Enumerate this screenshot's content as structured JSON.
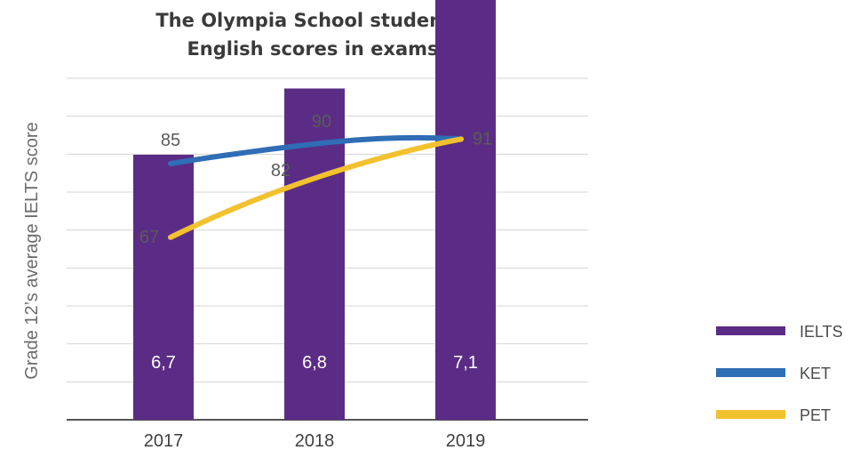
{
  "chart_data": {
    "type": "bar+line",
    "title_lines": [
      "The Olympia School students’",
      "English scores in exams"
    ],
    "ylabel": "Grade 12’s average IELTS score",
    "categories": [
      "2017",
      "2018",
      "2019"
    ],
    "series": [
      {
        "name": "IELTS",
        "kind": "bar",
        "color": "#5b2c86",
        "values": [
          6.7,
          6.8,
          7.1
        ],
        "labels": [
          "6,7",
          "6,8",
          "7,1"
        ]
      },
      {
        "name": "KET",
        "kind": "line",
        "color": "#2f6db5",
        "values": [
          85,
          90,
          91
        ],
        "labels": [
          "85",
          "90",
          "91"
        ]
      },
      {
        "name": "PET",
        "kind": "line",
        "color": "#f2c12e",
        "values": [
          67,
          82,
          91
        ],
        "labels": [
          "67",
          "82",
          "91"
        ]
      }
    ],
    "grid": true,
    "legend_position": "right"
  }
}
